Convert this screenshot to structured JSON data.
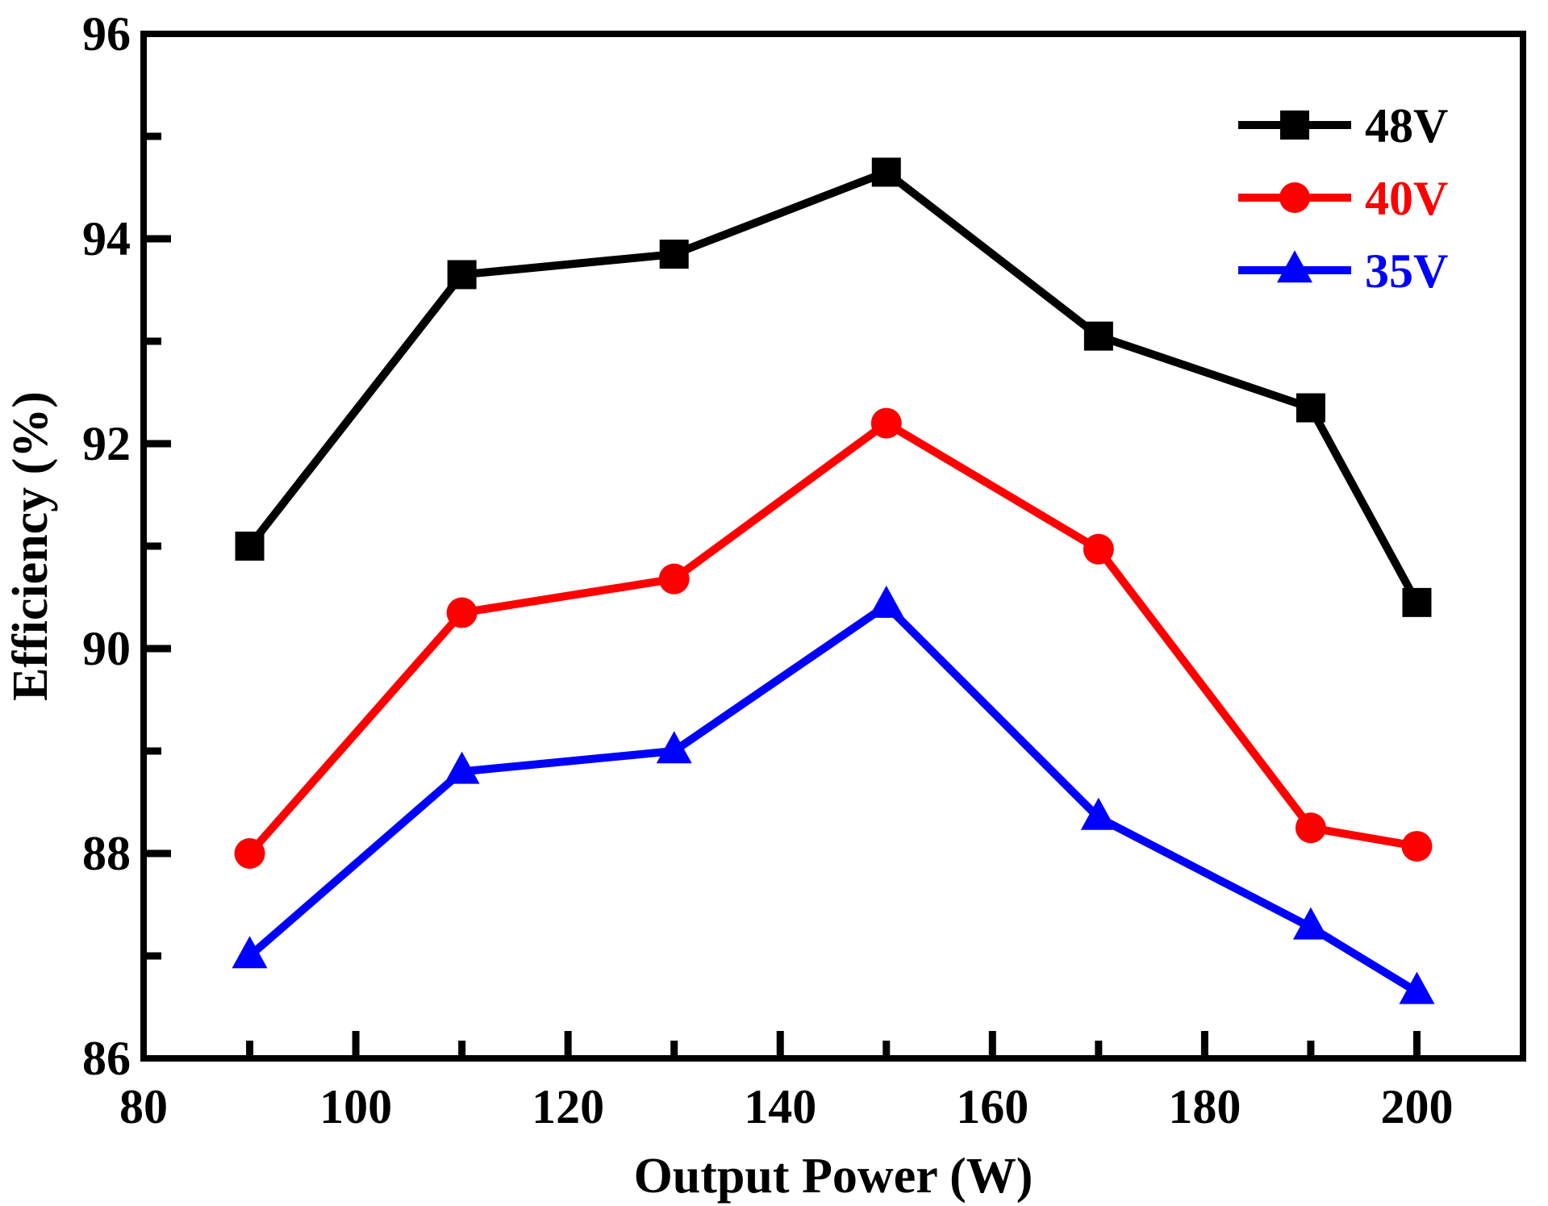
{
  "chart_data": {
    "type": "line",
    "title": "",
    "xlabel": "Output Power (W)",
    "ylabel": "Efficiency (%)",
    "xlim": [
      80,
      210
    ],
    "ylim": [
      86,
      96
    ],
    "xticks": [
      80,
      100,
      120,
      140,
      160,
      180,
      200
    ],
    "yticks": [
      86,
      88,
      90,
      92,
      94,
      96
    ],
    "x": [
      90,
      110,
      130,
      150,
      170,
      190,
      200
    ],
    "grid": false,
    "legend_position": "top-right",
    "series": [
      {
        "name": "48V",
        "color": "#000000",
        "marker": "square",
        "values": [
          91.0,
          93.65,
          93.85,
          94.65,
          93.05,
          92.35,
          90.45
        ]
      },
      {
        "name": "40V",
        "color": "#ff0000",
        "marker": "circle",
        "values": [
          88.0,
          90.35,
          90.68,
          92.2,
          90.97,
          88.25,
          88.07
        ]
      },
      {
        "name": "35V",
        "color": "#0000ff",
        "marker": "triangle",
        "values": [
          87.0,
          88.8,
          89.0,
          90.42,
          88.35,
          87.28,
          86.65
        ]
      }
    ]
  }
}
